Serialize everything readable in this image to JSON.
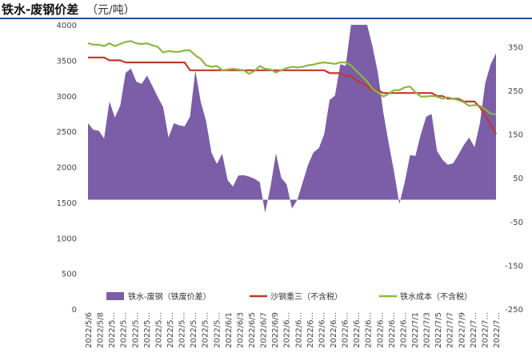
{
  "title": "铁水-废钢价差",
  "title_unit": "（元/吨）",
  "colors": {
    "area": "#7b5ea7",
    "steel": "#c0392b",
    "iron": "#8db641",
    "title_rule": "#1f4e9c"
  },
  "chart_data": {
    "type": "area",
    "left_axis": {
      "ylim": [
        0,
        4000
      ],
      "ticks": [
        "0",
        "500",
        "1000",
        "1500",
        "2000",
        "2500",
        "3000",
        "3500",
        "4000"
      ]
    },
    "right_axis": {
      "ylim": [
        -250,
        400
      ],
      "ticks": [
        "-250",
        "-150",
        "-50",
        "50",
        "150",
        "250",
        "350"
      ]
    },
    "x_tick_labels": [
      "2022/5/6",
      "2022/5/8",
      "2022/5...",
      "2022/5...",
      "2022/5...",
      "2022/5...",
      "2022/5...",
      "2022/5...",
      "2022/5...",
      "2022/5...",
      "2022/5...",
      "2022/5...",
      "2022/6/1",
      "2022/6/3",
      "2022/6/5",
      "2022/6/7",
      "2022/6/9",
      "2022/6...",
      "2022/6...",
      "2022/6...",
      "2022/6...",
      "2022/6...",
      "2022/6...",
      "2022/6...",
      "2022/6...",
      "2022/6...",
      "2022/6...",
      "2022/6...",
      "2022/7/1",
      "2022/7/3",
      "2022/7/5",
      "2022/7/7",
      "2022/7/9",
      "2022/7...",
      "2022/7...",
      "2022/7..."
    ],
    "series": [
      {
        "name": "铁水-废钢（铁废价差）",
        "axis": "right",
        "kind": "area",
        "baseline": 0,
        "values": [
          175,
          160,
          158,
          140,
          225,
          188,
          215,
          290,
          300,
          270,
          265,
          284,
          260,
          235,
          212,
          142,
          175,
          170,
          168,
          190,
          295,
          224,
          180,
          108,
          82,
          105,
          45,
          30,
          55,
          56,
          53,
          48,
          40,
          -30,
          30,
          106,
          50,
          35,
          -20,
          0,
          40,
          80,
          108,
          118,
          150,
          228,
          238,
          310,
          306,
          400,
          400,
          400,
          400,
          350,
          290,
          200,
          130,
          65,
          -10,
          40,
          102,
          100,
          150,
          190,
          196,
          112,
          92,
          80,
          83,
          103,
          125,
          142,
          120,
          175,
          267,
          310,
          335
        ]
      },
      {
        "name": "沙钢重三（不含税）",
        "axis": "left",
        "kind": "line",
        "values": [
          3540,
          3540,
          3540,
          3540,
          3500,
          3500,
          3500,
          3470,
          3470,
          3470,
          3470,
          3470,
          3470,
          3470,
          3470,
          3470,
          3470,
          3470,
          3470,
          3360,
          3360,
          3360,
          3360,
          3360,
          3360,
          3360,
          3360,
          3360,
          3360,
          3360,
          3360,
          3360,
          3360,
          3360,
          3360,
          3360,
          3360,
          3360,
          3360,
          3360,
          3360,
          3360,
          3360,
          3360,
          3360,
          3320,
          3320,
          3320,
          3280,
          3280,
          3220,
          3180,
          3140,
          3080,
          3080,
          3040,
          3040,
          3040,
          3040,
          3040,
          3040,
          3040,
          3040,
          3040,
          3040,
          3000,
          3000,
          2960,
          2960,
          2960,
          2920,
          2920,
          2920,
          2840,
          2720,
          2600,
          2460
        ]
      },
      {
        "name": "铁水成本（不含税）",
        "axis": "left",
        "kind": "line",
        "values": [
          3740,
          3720,
          3720,
          3700,
          3740,
          3700,
          3730,
          3760,
          3770,
          3740,
          3730,
          3740,
          3710,
          3690,
          3610,
          3630,
          3620,
          3620,
          3640,
          3640,
          3570,
          3520,
          3430,
          3410,
          3420,
          3360,
          3370,
          3380,
          3370,
          3360,
          3310,
          3350,
          3420,
          3380,
          3370,
          3330,
          3360,
          3390,
          3410,
          3400,
          3410,
          3430,
          3440,
          3460,
          3470,
          3460,
          3450,
          3470,
          3470,
          3430,
          3350,
          3280,
          3200,
          3100,
          3050,
          2990,
          3030,
          3080,
          3080,
          3120,
          3130,
          3050,
          2990,
          2990,
          3000,
          2990,
          2960,
          2980,
          2960,
          2940,
          2910,
          2860,
          2870,
          2860,
          2810,
          2750,
          2740
        ]
      }
    ]
  }
}
